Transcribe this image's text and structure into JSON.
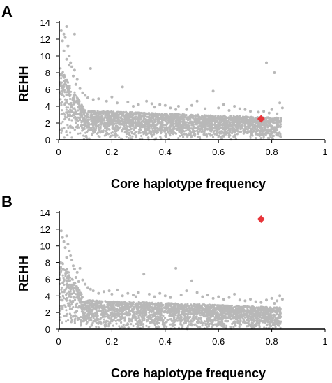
{
  "chart_data": [
    {
      "panel_label": "A",
      "type": "scatter",
      "xlabel": "Core haplotype frequency",
      "ylabel": "REHH",
      "xlim": [
        0,
        1
      ],
      "ylim": [
        0,
        14
      ],
      "x_ticks": [
        "0",
        "0.2",
        "0.4",
        "0.6",
        "0.8",
        "1"
      ],
      "y_ticks": [
        "0",
        "2",
        "4",
        "6",
        "8",
        "10",
        "12",
        "14"
      ],
      "grid": false,
      "legend": "none",
      "colors": {
        "background_points": "#b8b8b8",
        "highlight": "#e8353a"
      },
      "series": [
        {
          "name": "",
          "color": "#b8b8b8",
          "points": [
            [
              0.01,
              13.0
            ],
            [
              0.02,
              12.6
            ],
            [
              0.015,
              11.8
            ],
            [
              0.03,
              13.5
            ],
            [
              0.025,
              12.2
            ],
            [
              0.035,
              11.2
            ],
            [
              0.02,
              10.6
            ],
            [
              0.04,
              10.0
            ],
            [
              0.045,
              9.2
            ],
            [
              0.03,
              9.6
            ],
            [
              0.05,
              8.7
            ],
            [
              0.06,
              8.3
            ],
            [
              0.055,
              7.6
            ],
            [
              0.07,
              7.2
            ],
            [
              0.065,
              6.6
            ],
            [
              0.04,
              8.9
            ],
            [
              0.06,
              12.6
            ],
            [
              0.08,
              6.1
            ],
            [
              0.09,
              5.6
            ],
            [
              0.1,
              5.3
            ],
            [
              0.12,
              8.5
            ],
            [
              0.11,
              5.0
            ],
            [
              0.13,
              4.8
            ],
            [
              0.15,
              4.9
            ],
            [
              0.18,
              4.6
            ],
            [
              0.2,
              5.1
            ],
            [
              0.22,
              4.4
            ],
            [
              0.24,
              6.3
            ],
            [
              0.26,
              4.5
            ],
            [
              0.28,
              4.0
            ],
            [
              0.3,
              4.2
            ],
            [
              0.33,
              4.6
            ],
            [
              0.36,
              3.9
            ],
            [
              0.38,
              4.2
            ],
            [
              0.4,
              4.1
            ],
            [
              0.42,
              3.8
            ],
            [
              0.45,
              4.0
            ],
            [
              0.48,
              3.6
            ],
            [
              0.5,
              4.1
            ],
            [
              0.52,
              4.6
            ],
            [
              0.55,
              3.7
            ],
            [
              0.58,
              5.8
            ],
            [
              0.6,
              3.8
            ],
            [
              0.62,
              4.2
            ],
            [
              0.64,
              3.5
            ],
            [
              0.66,
              4.0
            ],
            [
              0.68,
              3.7
            ],
            [
              0.7,
              3.6
            ],
            [
              0.72,
              3.4
            ],
            [
              0.75,
              3.3
            ],
            [
              0.77,
              3.4
            ],
            [
              0.78,
              9.2
            ],
            [
              0.8,
              3.6
            ],
            [
              0.81,
              8.0
            ],
            [
              0.83,
              4.4
            ],
            [
              0.84,
              3.8
            ],
            [
              0.82,
              3.1
            ],
            [
              0.79,
              3.2
            ],
            [
              0.44,
              3.6
            ],
            [
              0.35,
              4.3
            ]
          ]
        },
        {
          "name": "",
          "color": "#e8353a",
          "points": [
            [
              0.76,
              2.5
            ]
          ]
        }
      ]
    },
    {
      "panel_label": "B",
      "type": "scatter",
      "xlabel": "Core haplotype frequency",
      "ylabel": "REHH",
      "xlim": [
        0,
        1
      ],
      "ylim": [
        0,
        14
      ],
      "x_ticks": [
        "0",
        "0.2",
        "0.4",
        "0.6",
        "0.8",
        "1"
      ],
      "y_ticks": [
        "0",
        "2",
        "4",
        "6",
        "8",
        "10",
        "12",
        "14"
      ],
      "grid": false,
      "legend": "none",
      "colors": {
        "background_points": "#b8b8b8",
        "highlight": "#e8353a"
      },
      "series": [
        {
          "name": "",
          "color": "#b8b8b8",
          "points": [
            [
              0.01,
              11.8
            ],
            [
              0.015,
              11.0
            ],
            [
              0.02,
              10.5
            ],
            [
              0.03,
              11.2
            ],
            [
              0.025,
              9.8
            ],
            [
              0.035,
              10.2
            ],
            [
              0.04,
              9.4
            ],
            [
              0.045,
              8.8
            ],
            [
              0.05,
              8.3
            ],
            [
              0.03,
              8.6
            ],
            [
              0.055,
              7.6
            ],
            [
              0.06,
              7.2
            ],
            [
              0.07,
              6.8
            ],
            [
              0.065,
              6.2
            ],
            [
              0.08,
              7.3
            ],
            [
              0.09,
              5.9
            ],
            [
              0.1,
              5.4
            ],
            [
              0.11,
              5.0
            ],
            [
              0.12,
              4.8
            ],
            [
              0.13,
              4.6
            ],
            [
              0.15,
              4.3
            ],
            [
              0.17,
              4.5
            ],
            [
              0.2,
              4.2
            ],
            [
              0.22,
              4.7
            ],
            [
              0.24,
              4.0
            ],
            [
              0.26,
              4.3
            ],
            [
              0.28,
              4.1
            ],
            [
              0.3,
              4.4
            ],
            [
              0.32,
              6.6
            ],
            [
              0.34,
              4.2
            ],
            [
              0.36,
              3.9
            ],
            [
              0.38,
              4.3
            ],
            [
              0.4,
              4.0
            ],
            [
              0.42,
              3.8
            ],
            [
              0.44,
              7.3
            ],
            [
              0.46,
              4.1
            ],
            [
              0.48,
              4.6
            ],
            [
              0.5,
              5.8
            ],
            [
              0.52,
              4.4
            ],
            [
              0.54,
              3.9
            ],
            [
              0.56,
              4.1
            ],
            [
              0.58,
              3.7
            ],
            [
              0.6,
              3.9
            ],
            [
              0.62,
              3.6
            ],
            [
              0.64,
              3.8
            ],
            [
              0.66,
              4.2
            ],
            [
              0.68,
              3.5
            ],
            [
              0.7,
              3.4
            ],
            [
              0.72,
              3.6
            ],
            [
              0.74,
              3.3
            ],
            [
              0.76,
              3.2
            ],
            [
              0.78,
              3.5
            ],
            [
              0.8,
              3.7
            ],
            [
              0.82,
              3.4
            ],
            [
              0.83,
              4.0
            ],
            [
              0.84,
              3.6
            ],
            [
              0.81,
              3.1
            ],
            [
              0.29,
              3.9
            ],
            [
              0.19,
              4.6
            ],
            [
              0.075,
              5.7
            ]
          ]
        },
        {
          "name": "",
          "color": "#e8353a",
          "points": [
            [
              0.76,
              13.2
            ]
          ]
        }
      ]
    }
  ]
}
